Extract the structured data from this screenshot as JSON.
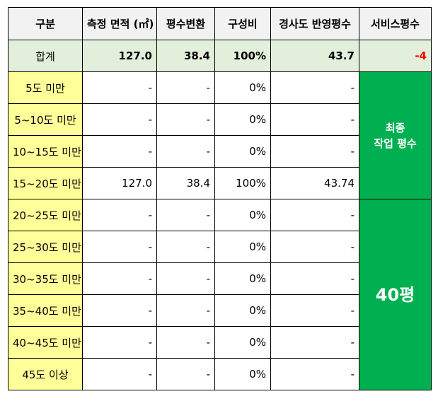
{
  "headers": [
    "구분",
    "측정 면적 (㎡)",
    "평수변환",
    "구성비",
    "경사도 반영평수",
    "서비스평수"
  ],
  "total": {
    "label": "합계",
    "area": "127.0",
    "pyeong": "38.4",
    "ratio": "100%",
    "slope": "43.7",
    "service": "-4"
  },
  "rows": [
    {
      "category": "5도 미만",
      "area": "-",
      "pyeong": "-",
      "ratio": "0%",
      "slope": "-"
    },
    {
      "category": "5~10도 미만",
      "area": "-",
      "pyeong": "-",
      "ratio": "0%",
      "slope": "-"
    },
    {
      "category": "10~15도 미만",
      "area": "-",
      "pyeong": "-",
      "ratio": "0%",
      "slope": "-"
    },
    {
      "category": "15~20도 미만",
      "area": "127.0",
      "pyeong": "38.4",
      "ratio": "100%",
      "slope": "43.74"
    },
    {
      "category": "20~25도 미만",
      "area": "-",
      "pyeong": "-",
      "ratio": "0%",
      "slope": "-"
    },
    {
      "category": "25~30도 미만",
      "area": "-",
      "pyeong": "-",
      "ratio": "0%",
      "slope": "-"
    },
    {
      "category": "30~35도 미만",
      "area": "-",
      "pyeong": "-",
      "ratio": "0%",
      "slope": "-"
    },
    {
      "category": "35~40도 미만",
      "area": "-",
      "pyeong": "-",
      "ratio": "0%",
      "slope": "-"
    },
    {
      "category": "40~45도 미만",
      "area": "-",
      "pyeong": "-",
      "ratio": "0%",
      "slope": "-"
    },
    {
      "category": "45도 이상",
      "area": "-",
      "pyeong": "-",
      "ratio": "0%",
      "slope": "-"
    }
  ],
  "merged": {
    "final_label_line1": "최종",
    "final_label_line2": "작업 평수",
    "final_value": "40평"
  },
  "colors": {
    "header_bg": "#f2f2f2",
    "total_bg": "#e2efda",
    "category_bg": "#ffff99",
    "merged_bg": "#00b050",
    "negative_text": "#ff0000"
  }
}
